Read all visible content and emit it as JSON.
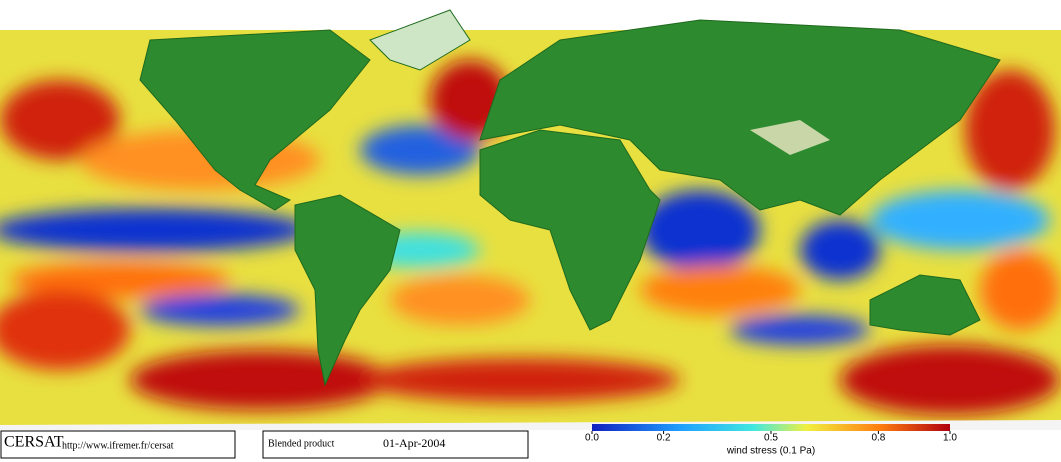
{
  "footer": {
    "logo": "CERSAT",
    "url": "http://www.ifremer.fr/cersat",
    "product": "Blended product",
    "date": "01-Apr-2004"
  },
  "colorbar": {
    "label": "wind stress (0.1 Pa)",
    "lim": [
      0,
      1
    ],
    "ticks": [
      {
        "value": 0,
        "label": "0.0"
      },
      0.2,
      0.5,
      0.8,
      {
        "value": 1,
        "label": "1.0"
      }
    ]
  }
}
